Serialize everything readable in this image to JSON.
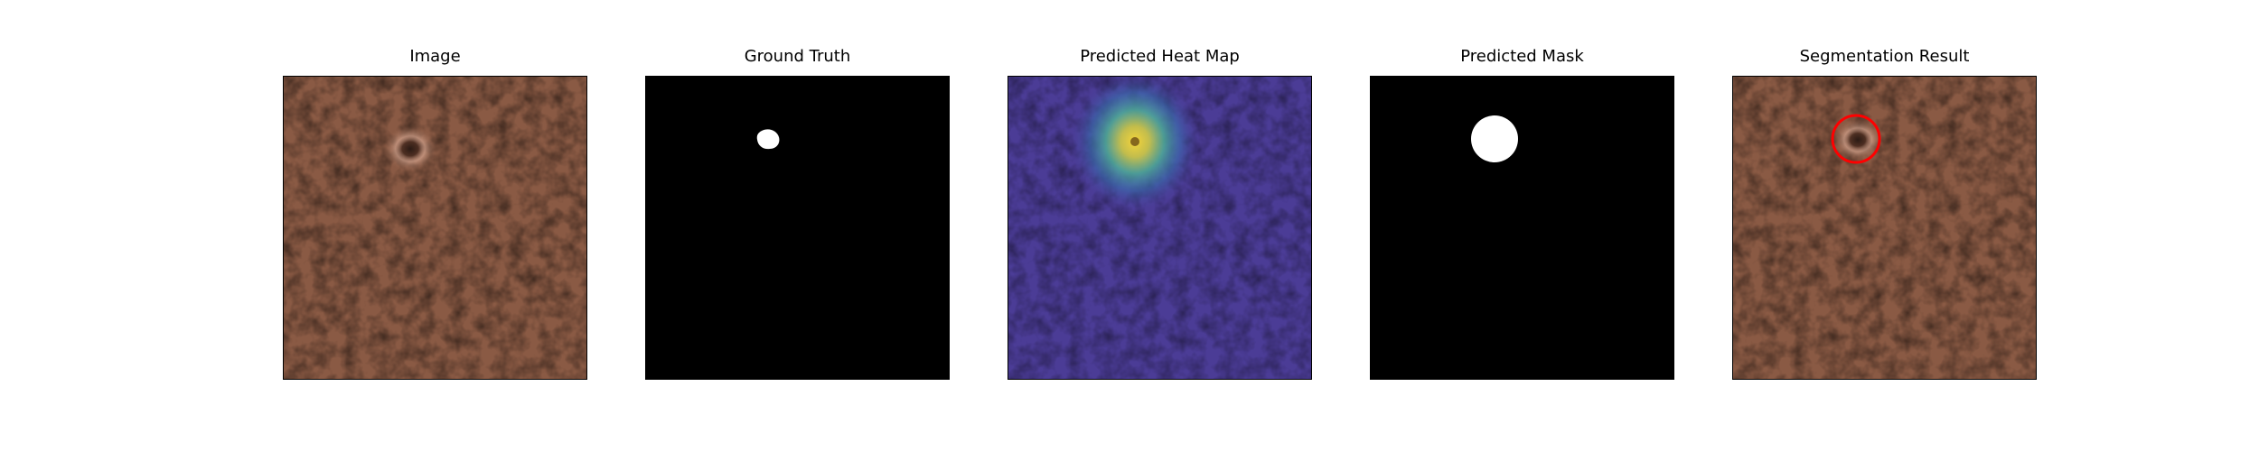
{
  "figure": {
    "panels": [
      {
        "title": "Image"
      },
      {
        "title": "Ground Truth"
      },
      {
        "title": "Predicted Heat Map"
      },
      {
        "title": "Predicted Mask"
      },
      {
        "title": "Segmentation Result"
      }
    ]
  },
  "colors": {
    "leather": "#8a5a44",
    "mask_background": "#000000",
    "mask_foreground": "#ffffff",
    "heat_low": "#4a3a9a",
    "heat_high": "#f2d23a",
    "segmentation_outline": "#ff0000"
  }
}
